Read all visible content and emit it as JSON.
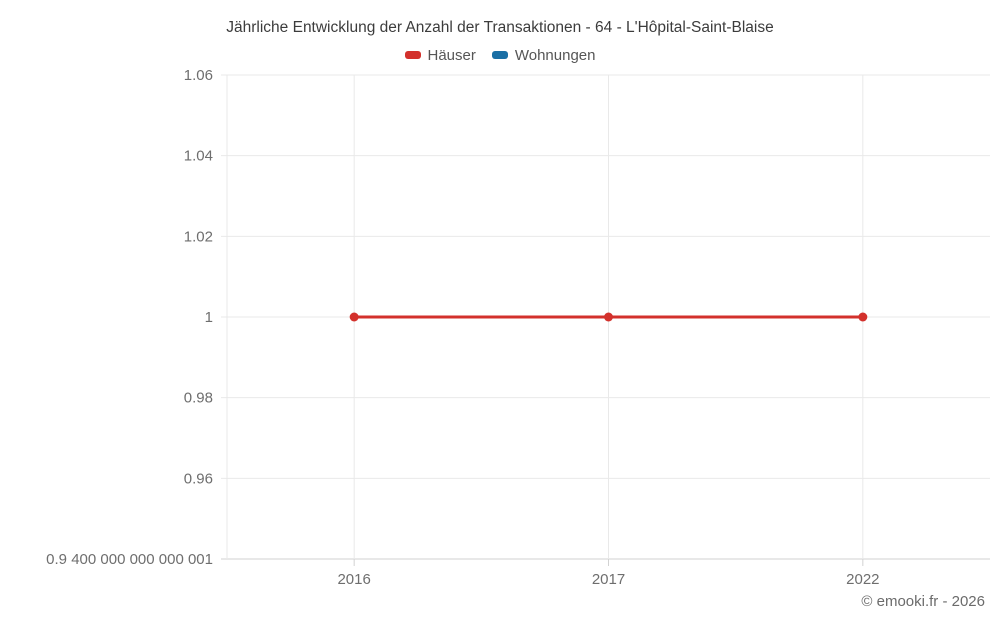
{
  "title": "Jährliche Entwicklung der Anzahl der Transaktionen - 64 - L'Hôpital-Saint-Blaise",
  "footer": "© emooki.fr - 2026",
  "colors": {
    "background": "#ffffff",
    "title_text": "#3c3c3c",
    "legend_text": "#565656",
    "axis_text": "#6e6e6e",
    "grid": "#e9e9e9",
    "axis_border": "#d2d2d2",
    "hauser_red": "#d3312c",
    "wohnungen_blue": "#1a6fa5"
  },
  "chart_data": {
    "type": "line",
    "title": "Jährliche Entwicklung der Anzahl der Transaktionen - 64 - L'Hôpital-Saint-Blaise",
    "categories": [
      "2016",
      "2017",
      "2022"
    ],
    "series": [
      {
        "name": "Häuser",
        "color": "#d3312c",
        "values": [
          1,
          1,
          1
        ]
      },
      {
        "name": "Wohnungen",
        "color": "#1a6fa5",
        "values": []
      }
    ],
    "xlabel": "",
    "ylabel": "",
    "ylim": [
      0.9400000000000001,
      1.06
    ],
    "y_ticks": [
      {
        "value": 1.06,
        "label": "1.06"
      },
      {
        "value": 1.04,
        "label": "1.04"
      },
      {
        "value": 1.02,
        "label": "1.02"
      },
      {
        "value": 1.0,
        "label": "1"
      },
      {
        "value": 0.98,
        "label": "0.98"
      },
      {
        "value": 0.96,
        "label": "0.96"
      },
      {
        "value": 0.9400000000000001,
        "label": "0.9 400 000 000 000 001"
      }
    ],
    "grid": true,
    "legend_position": "top"
  }
}
